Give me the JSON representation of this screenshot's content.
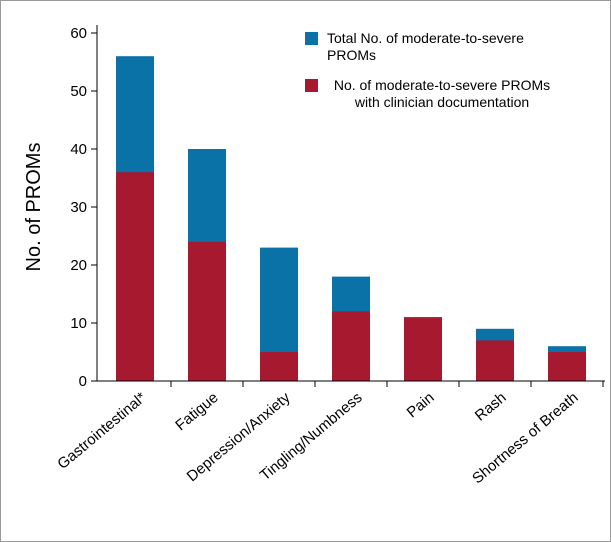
{
  "chart_data": {
    "type": "bar",
    "y_label": "No. of PROMs",
    "categories": [
      "Gastrointestinal*",
      "Fatigue",
      "Depression/Anxiety",
      "Tingling/Numbness",
      "Pain",
      "Rash",
      "Shortness of Breath"
    ],
    "series": [
      {
        "name": "Total No. of moderate-to-severe PROMs",
        "color": "#0b72a8",
        "values": [
          56,
          40,
          23,
          18,
          11,
          9,
          6
        ]
      },
      {
        "name": "No. of moderate-to-severe PROMs with clinician documentation",
        "color": "#a6192e",
        "values": [
          36,
          24,
          5,
          12,
          11,
          7,
          5
        ]
      }
    ],
    "ylim": [
      0,
      60
    ],
    "yticks": [
      0,
      10,
      20,
      30,
      40,
      50,
      60
    ],
    "grid": false
  }
}
